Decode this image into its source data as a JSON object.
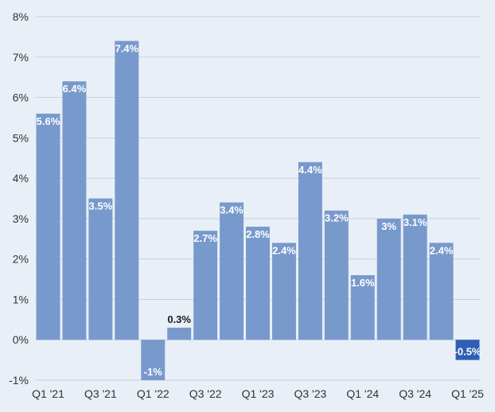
{
  "chart_data": {
    "type": "bar",
    "title": "",
    "xlabel": "",
    "ylabel": "",
    "ylim": [
      -1,
      8
    ],
    "y_ticks": [
      "-1%",
      "0%",
      "1%",
      "2%",
      "3%",
      "4%",
      "5%",
      "6%",
      "7%",
      "8%"
    ],
    "grid": true,
    "legend": "none",
    "categories": [
      "Q1 '21",
      "Q2 '21",
      "Q3 '21",
      "Q4 '21",
      "Q1 '22",
      "Q2 '22",
      "Q3 '22",
      "Q4 '22",
      "Q1 '23",
      "Q2 '23",
      "Q3 '23",
      "Q4 '23",
      "Q1 '24",
      "Q2 '24",
      "Q3 '24",
      "Q4 '24",
      "Q1 '25"
    ],
    "x_tick_labels": [
      "Q1 '21",
      "",
      "Q3 '21",
      "",
      "Q1 '22",
      "",
      "Q3 '22",
      "",
      "Q1 '23",
      "",
      "Q3 '23",
      "",
      "Q1 '24",
      "",
      "Q3 '24",
      "",
      "Q1 '25"
    ],
    "values": [
      5.6,
      6.4,
      3.5,
      7.4,
      -1,
      0.3,
      2.7,
      3.4,
      2.8,
      2.4,
      4.4,
      3.2,
      1.6,
      3.0,
      3.1,
      2.4,
      -0.5
    ],
    "data_labels": [
      "5.6%",
      "6.4%",
      "3.5%",
      "7.4%",
      "-1%",
      "0.3%",
      "2.7%",
      "3.4%",
      "2.8%",
      "2.4%",
      "4.4%",
      "3.2%",
      "1.6%",
      "3%",
      "3.1%",
      "2.4%",
      "-0.5%"
    ],
    "colors": {
      "bar": "#7899cc",
      "highlight": "#2f5fb5",
      "grid": "#c6d2de",
      "background": "#e8eff7"
    },
    "highlight_index": 16
  }
}
